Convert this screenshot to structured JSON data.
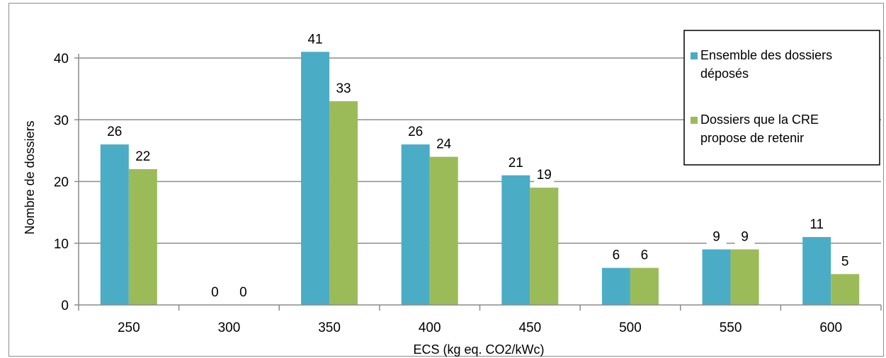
{
  "chart_data": {
    "type": "bar",
    "categories": [
      "250",
      "300",
      "350",
      "400",
      "450",
      "500",
      "550",
      "600"
    ],
    "series": [
      {
        "name": "Ensemble des dossiers déposés",
        "legend_lines": [
          "Ensemble des dossiers",
          "déposés"
        ],
        "color": "#4bacc6",
        "values": [
          26,
          0,
          41,
          26,
          21,
          6,
          9,
          11
        ]
      },
      {
        "name": "Dossiers que la CRE propose de retenir",
        "legend_lines": [
          "Dossiers que la CRE",
          "propose de retenir"
        ],
        "color": "#9bbb59",
        "values": [
          22,
          0,
          33,
          24,
          19,
          6,
          9,
          5
        ]
      }
    ],
    "xlabel": "ECS (kg eq. CO2/kWc)",
    "ylabel": "Nombre de dossiers",
    "ylim": [
      0,
      40
    ],
    "yticks": [
      0,
      10,
      20,
      30,
      40
    ],
    "grid": true,
    "data_labels": true,
    "legend_position": "top-right"
  }
}
